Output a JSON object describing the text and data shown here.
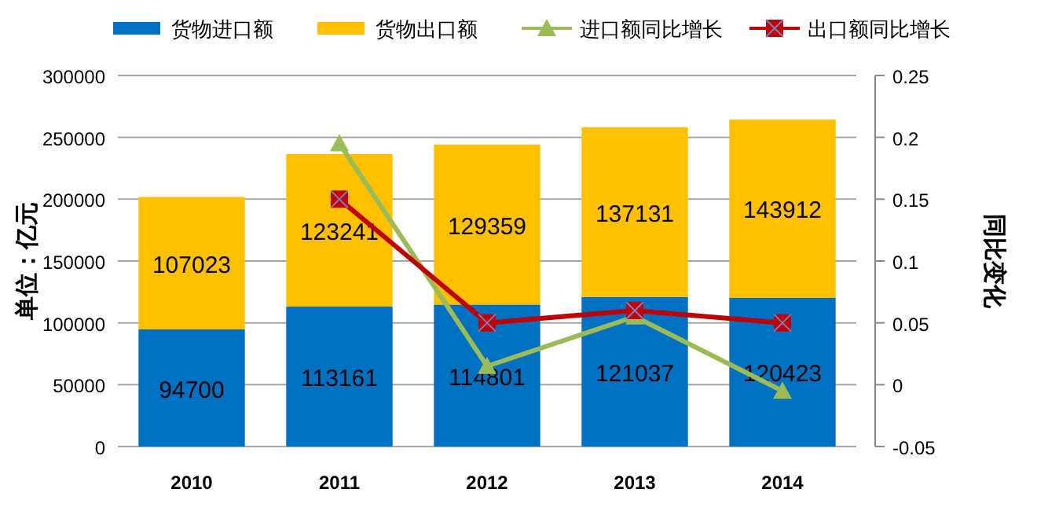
{
  "chart_data": {
    "type": "bar",
    "stacked": true,
    "categories": [
      "2010",
      "2011",
      "2012",
      "2013",
      "2014"
    ],
    "ylabel": "单位：亿元",
    "y2label": "同比变化",
    "ylim": [
      0,
      300000
    ],
    "yticks": [
      0,
      50000,
      100000,
      150000,
      200000,
      250000,
      300000
    ],
    "y2lim": [
      -0.05,
      0.25
    ],
    "y2ticks": [
      -0.05,
      0,
      0.05,
      0.1,
      0.15,
      0.2,
      0.25
    ],
    "grid": "y",
    "legend": "top",
    "series": [
      {
        "name": "货物进口额",
        "color": "#0070c0",
        "values": [
          94700,
          113161,
          114801,
          121037,
          120423
        ],
        "value_labels": [
          "94700",
          "113161",
          "114801",
          "121037",
          "120423"
        ]
      },
      {
        "name": "货物出口额",
        "color": "#ffc000",
        "values": [
          107023,
          123241,
          129359,
          137131,
          143912
        ],
        "value_labels": [
          "107023",
          "123241",
          "129359",
          "137131",
          "143912"
        ]
      },
      {
        "name": "进口额同比增长",
        "type": "line",
        "axis": "y2",
        "color": "#9bbb59",
        "marker": "triangle",
        "values": [
          null,
          0.195,
          0.015,
          0.055,
          -0.005
        ]
      },
      {
        "name": "出口额同比增长",
        "type": "line",
        "axis": "y2",
        "color": "#c00000",
        "marker": "square",
        "values": [
          null,
          0.15,
          0.05,
          0.06,
          0.05
        ]
      }
    ]
  }
}
